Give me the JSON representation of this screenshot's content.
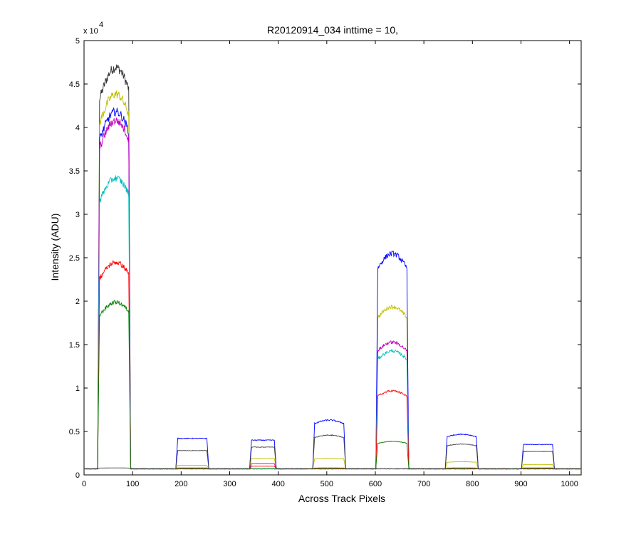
{
  "chart_data": {
    "type": "line",
    "title": "R20120914_034 inttime = 10,",
    "xlabel": "Across Track Pixels",
    "ylabel": "Intensity (ADU)",
    "y_multiplier": "x 10",
    "y_multiplier_exponent": "4",
    "xlim": [
      0,
      1024
    ],
    "ylim": [
      0,
      50000
    ],
    "xticks": [
      0,
      100,
      200,
      300,
      400,
      500,
      600,
      700,
      800,
      900,
      1000
    ],
    "xtick_labels": [
      "0",
      "100",
      "200",
      "300",
      "400",
      "500",
      "600",
      "700",
      "800",
      "900",
      "1000"
    ],
    "yticks": [
      0,
      5000,
      10000,
      15000,
      20000,
      25000,
      30000,
      35000,
      40000,
      45000,
      50000
    ],
    "ytick_labels": [
      "0",
      "0.5",
      "1",
      "1.5",
      "2",
      "2.5",
      "3",
      "3.5",
      "4",
      "4.5",
      "5"
    ],
    "grid": false,
    "legend": "none",
    "baseline": 700,
    "segments": [
      {
        "start": 32,
        "end": 92,
        "shape": "rising"
      },
      {
        "start": 193,
        "end": 253,
        "shape": "flat"
      },
      {
        "start": 345,
        "end": 392,
        "shape": "flat"
      },
      {
        "start": 475,
        "end": 535,
        "shape": "dome"
      },
      {
        "start": 605,
        "end": 665,
        "shape": "dome"
      },
      {
        "start": 748,
        "end": 808,
        "shape": "dome"
      },
      {
        "start": 905,
        "end": 965,
        "shape": "flat"
      }
    ],
    "series": [
      {
        "color": "#333333",
        "plateaus": [
          46000,
          0,
          0,
          0,
          0,
          0,
          0
        ]
      },
      {
        "color": "#bfbf00",
        "plateaus": [
          43000,
          1100,
          1900,
          1900,
          19000,
          1500,
          1200
        ]
      },
      {
        "color": "#0000ff",
        "plateaus": [
          41000,
          4200,
          4000,
          6200,
          25000,
          4600,
          3500
        ]
      },
      {
        "color": "#bf00bf",
        "plateaus": [
          40000,
          0,
          1300,
          0,
          15000,
          0,
          0
        ]
      },
      {
        "color": "#00bfbf",
        "plateaus": [
          33500,
          0,
          0,
          0,
          14000,
          0,
          0
        ]
      },
      {
        "color": "#ff0000",
        "plateaus": [
          24000,
          800,
          1000,
          800,
          9500,
          800,
          800
        ]
      },
      {
        "color": "#008000",
        "plateaus": [
          19500,
          700,
          700,
          700,
          3800,
          700,
          700
        ]
      },
      {
        "color": "#444444",
        "plateaus": [
          800,
          2800,
          3200,
          4500,
          0,
          3500,
          2700
        ]
      }
    ]
  }
}
